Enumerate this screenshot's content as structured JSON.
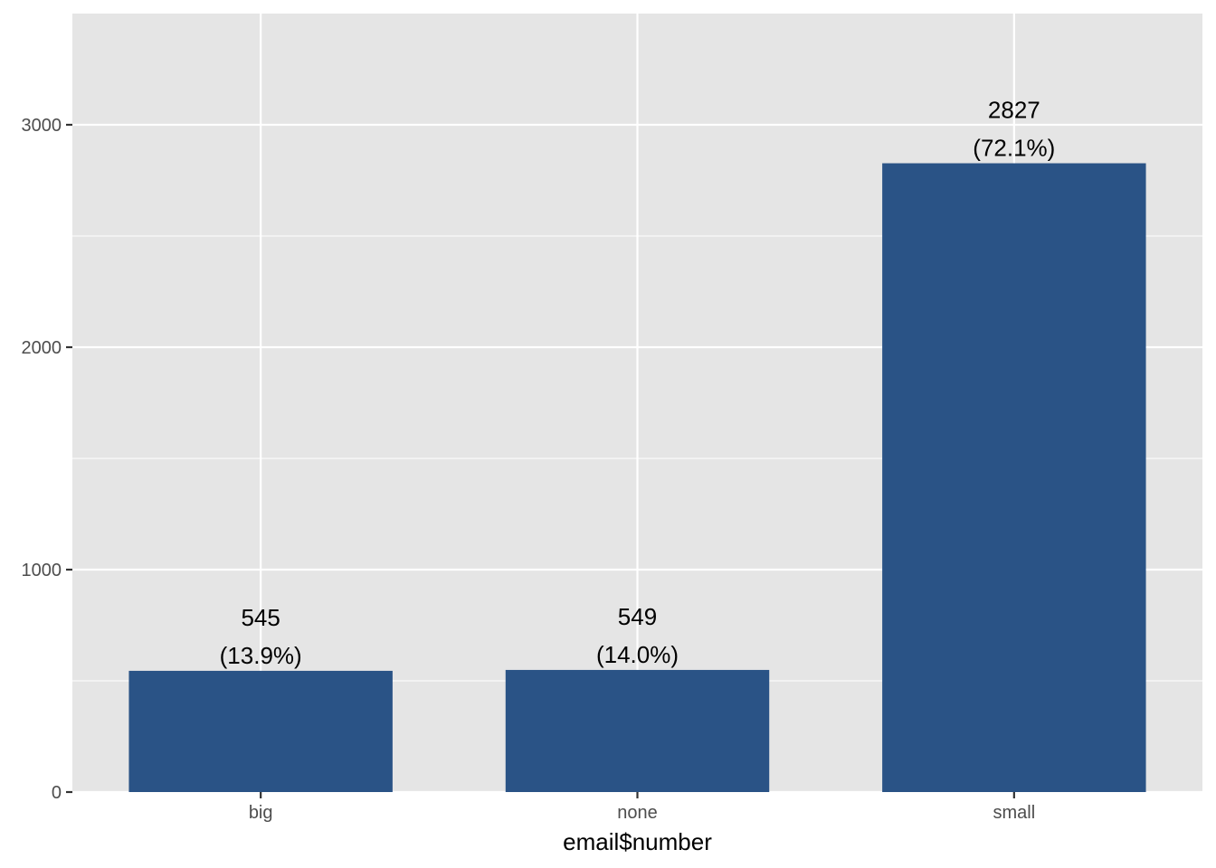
{
  "chart_data": {
    "type": "bar",
    "categories": [
      "big",
      "none",
      "small"
    ],
    "values": [
      545,
      549,
      2827
    ],
    "data_labels": [
      {
        "count": "545",
        "percent": "(13.9%)"
      },
      {
        "count": "549",
        "percent": "(14.0%)"
      },
      {
        "count": "2827",
        "percent": "(72.1%)"
      }
    ],
    "xlabel": "email$number",
    "ylabel": "",
    "ylim": [
      0,
      3500
    ],
    "y_ticks": [
      0,
      1000,
      2000,
      3000
    ],
    "y_minor_ticks": [
      500,
      1500,
      2500
    ],
    "y_tick_labels": [
      "0",
      "1000",
      "2000",
      "3000"
    ],
    "grid": true,
    "legend": "none",
    "colors": {
      "bar": "#2a5386",
      "panel_background": "#e5e5e5",
      "grid_line": "#ffffff",
      "tick_text": "#4d4d4d"
    }
  }
}
